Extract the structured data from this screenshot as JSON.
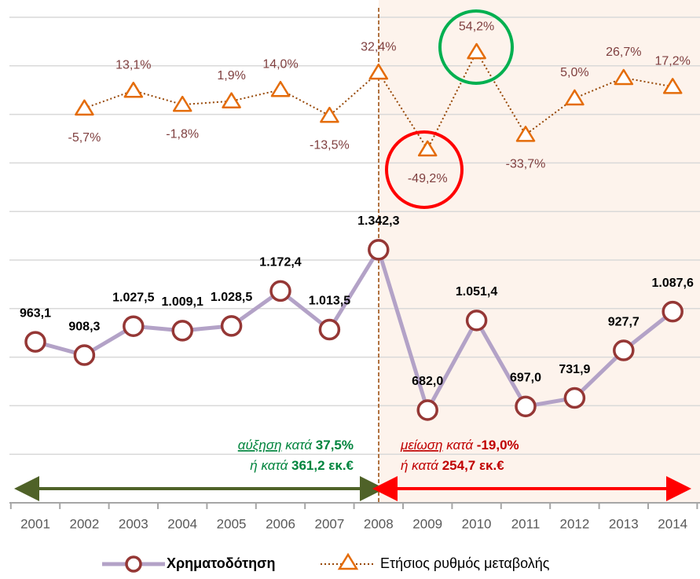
{
  "chart_data": {
    "type": "line",
    "categories": [
      "2001",
      "2002",
      "2003",
      "2004",
      "2005",
      "2006",
      "2007",
      "2008",
      "2009",
      "2010",
      "2011",
      "2012",
      "2013",
      "2014"
    ],
    "series": [
      {
        "name": "Χρηματοδότηση",
        "color": "#b3a2c7",
        "marker_color": "#953735",
        "values": [
          963.1,
          908.3,
          1027.5,
          1009.1,
          1028.5,
          1172.4,
          1013.5,
          1342.3,
          682.0,
          1051.4,
          697.0,
          731.9,
          927.7,
          1087.6
        ],
        "value_labels": [
          "963,1",
          "908,3",
          "1.027,5",
          "1.009,1",
          "1.028,5",
          "1.172,4",
          "1.013,5",
          "1.342,3",
          "682,0",
          "1.051,4",
          "697,0",
          "731,9",
          "927,7",
          "1.087,6"
        ]
      },
      {
        "name": "Ετήσιος ρυθμός μεταβολής",
        "color": "#974706",
        "marker_color": "#e46c0a",
        "axis": "y2",
        "values": [
          null,
          -5.7,
          13.1,
          -1.8,
          1.9,
          14.0,
          -13.5,
          32.4,
          -49.2,
          54.2,
          -33.7,
          5.0,
          26.7,
          17.2
        ],
        "value_labels": [
          null,
          "-5,7%",
          "13,1%",
          "-1,8%",
          "1,9%",
          "14,0%",
          "-13,5%",
          "32,4%",
          "-49,2%",
          "54,2%",
          "-33,7%",
          "5,0%",
          "26,7%",
          "17,2%"
        ]
      }
    ],
    "ylim": [
      300,
      2300
    ],
    "yticks": [
      300,
      500,
      700,
      900,
      1100,
      1300,
      1500,
      1700,
      1900,
      2100,
      2300
    ],
    "y2lim": [
      -425,
      91
    ],
    "grid": true,
    "annotations": {
      "increase": {
        "word": "αύξηση",
        "by": "κατά",
        "pct": "37,5%",
        "or": "ή κατά",
        "amount": "361,2 εκ.€"
      },
      "decrease": {
        "word": "μείωση",
        "by": "κατά",
        "pct": "-19,0%",
        "or": "ή κατά",
        "amount": "254,7 εκ.€"
      }
    }
  }
}
